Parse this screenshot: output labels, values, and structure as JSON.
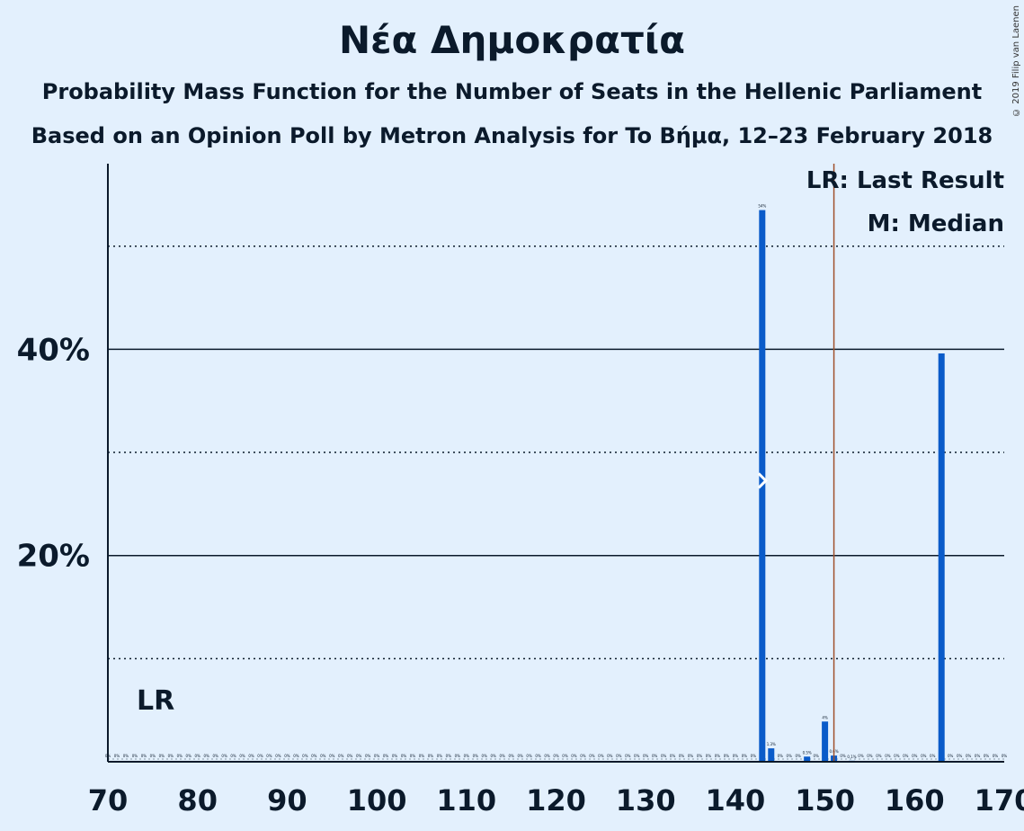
{
  "title": "Νέα Δημοκρατία",
  "subtitle": "Probability Mass Function for the Number of Seats in the Hellenic Parliament",
  "subtitle2": "Based on an Opinion Poll by Metron Analysis for To Βήμα, 12–23 February 2018",
  "copyright": "© 2019 Filip van Laenen",
  "legend": {
    "lr": "LR: Last Result",
    "median": "M: Median"
  },
  "lr_marker_label": "LR",
  "median_marker_label": "M",
  "colors": {
    "bar": "#0a5bc9",
    "background": "#e3f0fd",
    "last_result": "#a0522d"
  },
  "chart_data": {
    "type": "bar",
    "title": "Νέα Δημοκρατία",
    "xlabel": "",
    "ylabel": "",
    "xlim": [
      70,
      170
    ],
    "ylim": [
      0,
      58
    ],
    "x_ticks": [
      70,
      80,
      90,
      100,
      110,
      120,
      130,
      140,
      150,
      160,
      170
    ],
    "x_tick_labels": [
      "70",
      "80",
      "90",
      "100",
      "110",
      "120",
      "130",
      "140",
      "150",
      "160",
      "170"
    ],
    "y_ticks_labeled": [
      20,
      40
    ],
    "y_tick_labels": [
      "20%",
      "40%"
    ],
    "y_grid_solid": [
      20,
      40
    ],
    "y_grid_dotted": [
      10,
      30,
      50
    ],
    "grid": true,
    "legend_position": "top-right",
    "last_result_seats": 151,
    "median_seats": 143,
    "values_pct": [
      {
        "seats": 143,
        "pct": 53.5,
        "label": "54%"
      },
      {
        "seats": 144,
        "pct": 1.3,
        "label": "1.3%"
      },
      {
        "seats": 148,
        "pct": 0.5,
        "label": "0.5%"
      },
      {
        "seats": 150,
        "pct": 3.9,
        "label": "4%"
      },
      {
        "seats": 151,
        "pct": 0.6,
        "label": "0.6%"
      },
      {
        "seats": 153,
        "pct": 0.1,
        "label": "0.1%"
      },
      {
        "seats": 163,
        "pct": 39.6,
        "label": ""
      }
    ],
    "zero_label": "0%"
  }
}
